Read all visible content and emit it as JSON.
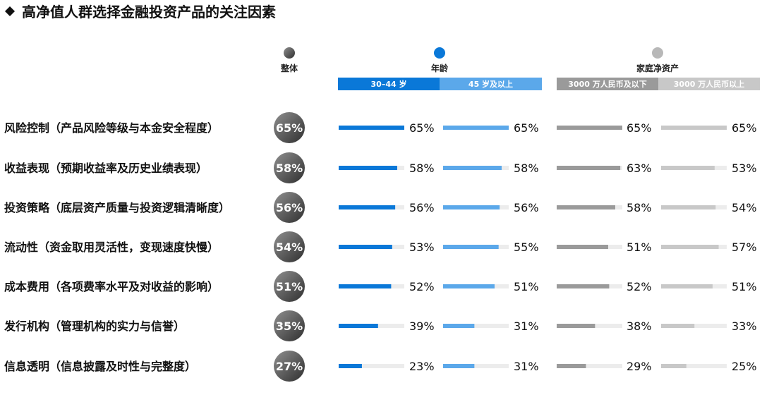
{
  "chart_data": {
    "type": "bar",
    "title": "高净值人群选择金融投资产品的关注因素",
    "legend": [
      {
        "label": "整体",
        "color": "#6f6f6f"
      },
      {
        "label": "年龄",
        "color": "#0a78d8"
      },
      {
        "label": "家庭净资产",
        "color": "#b8b8b8"
      }
    ],
    "group_headers": [
      {
        "label": "30–44 岁",
        "color": "#0a78d8"
      },
      {
        "label": "45 岁及以上",
        "color": "#5ba8ea"
      },
      {
        "label": "3000 万人民币及以下",
        "color": "#9a9a9a"
      },
      {
        "label": "3000 万人民币以上",
        "color": "#c8c8c8"
      }
    ],
    "categories": [
      "风险控制（产品风险等级与本金安全程度）",
      "收益表现（预期收益率及历史业绩表现）",
      "投资策略（底层资产质量与投资逻辑清晰度）",
      "流动性（资金取用灵活性，变现速度快慢）",
      "成本费用（各项费率水平及对收益的影响）",
      "发行机构（管理机构的实力与信誉）",
      "信息透明（信息披露及时性与完整度）"
    ],
    "overall": {
      "name": "整体",
      "values": [
        65,
        58,
        56,
        54,
        51,
        35,
        27
      ],
      "labels": [
        "65%",
        "58%",
        "56%",
        "54%",
        "51%",
        "35%",
        "27%"
      ]
    },
    "series": [
      {
        "name": "30–44 岁",
        "color": "#0a78d8",
        "values": [
          65,
          58,
          56,
          53,
          52,
          39,
          23
        ],
        "labels": [
          "65%",
          "58%",
          "56%",
          "53%",
          "52%",
          "39%",
          "23%"
        ]
      },
      {
        "name": "45 岁及以上",
        "color": "#5ba8ea",
        "values": [
          65,
          58,
          56,
          55,
          51,
          31,
          31
        ],
        "labels": [
          "65%",
          "58%",
          "56%",
          "55%",
          "51%",
          "31%",
          "31%"
        ]
      },
      {
        "name": "3000 万人民币及以下",
        "color": "#9a9a9a",
        "values": [
          65,
          63,
          58,
          51,
          52,
          38,
          29
        ],
        "labels": [
          "65%",
          "63%",
          "58%",
          "51%",
          "52%",
          "38%",
          "29%"
        ]
      },
      {
        "name": "3000 万人民币以上",
        "color": "#c8c8c8",
        "values": [
          65,
          53,
          54,
          57,
          51,
          33,
          25
        ],
        "labels": [
          "65%",
          "53%",
          "54%",
          "57%",
          "51%",
          "33%",
          "25%"
        ]
      }
    ],
    "xlim": [
      0,
      100
    ],
    "grid": false
  },
  "page_colors": {
    "background": "#ffffff",
    "track": "#ececec",
    "title_icon": "#111111"
  }
}
